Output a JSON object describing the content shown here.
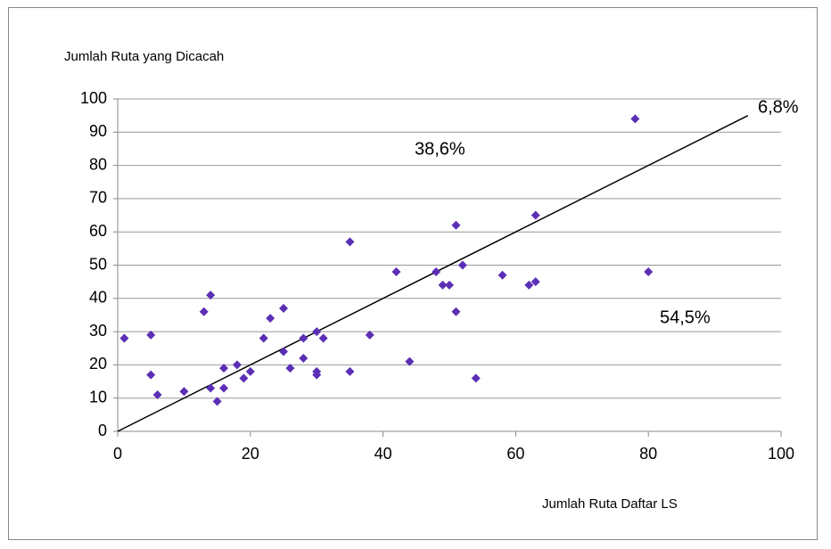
{
  "chart_data": {
    "type": "scatter",
    "y_label": "Jumlah Ruta yang Dicacah",
    "x_label": "Jumlah Ruta Daftar LS",
    "color": "#5b2fb5",
    "x": [
      1,
      5,
      5,
      6,
      10,
      13,
      14,
      14,
      15,
      16,
      16,
      18,
      19,
      20,
      22,
      23,
      25,
      25,
      26,
      28,
      28,
      30,
      30,
      30,
      31,
      35,
      35,
      38,
      42,
      44,
      48,
      49,
      50,
      51,
      51,
      52,
      54,
      58,
      62,
      63,
      63,
      78,
      80
    ],
    "values": [
      28,
      29,
      17,
      11,
      12,
      36,
      41,
      13,
      9,
      19,
      13,
      20,
      16,
      18,
      28,
      34,
      37,
      24,
      19,
      28,
      22,
      30,
      18,
      17,
      28,
      57,
      18,
      29,
      48,
      21,
      48,
      44,
      44,
      62,
      36,
      50,
      16,
      47,
      44,
      45,
      65,
      94,
      48
    ],
    "line": {
      "x": [
        0,
        95
      ],
      "y": [
        0,
        95
      ]
    },
    "annotations": [
      "38,6%",
      "6,8%",
      "54,5%"
    ],
    "xlim": [
      0,
      100
    ],
    "xticks": [
      0,
      20,
      40,
      60,
      80,
      100
    ],
    "ylim": [
      0,
      100
    ],
    "yticks": [
      0,
      10,
      20,
      30,
      40,
      50,
      60,
      70,
      80,
      90,
      100
    ],
    "grid": true
  }
}
